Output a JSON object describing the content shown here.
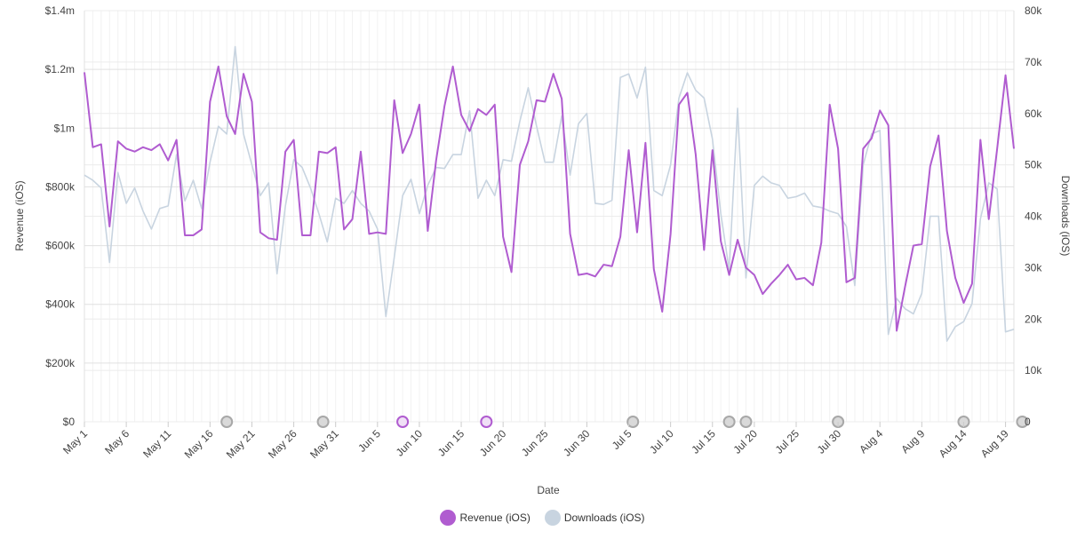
{
  "chart_data": {
    "type": "line",
    "title": "",
    "xlabel": "Date",
    "ylabel_left": "Revenue (iOS)",
    "ylabel_right": "Downloads (iOS)",
    "x_start": "May 1",
    "x_ticks": [
      "May 1",
      "May 6",
      "May 11",
      "May 16",
      "May 21",
      "May 26",
      "May 31",
      "Jun 5",
      "Jun 10",
      "Jun 15",
      "Jun 20",
      "Jun 25",
      "Jun 30",
      "Jul 5",
      "Jul 10",
      "Jul 15",
      "Jul 20",
      "Jul 25",
      "Jul 30",
      "Aug 4",
      "Aug 9",
      "Aug 14",
      "Aug 19"
    ],
    "y_left_ticks": [
      "$0",
      "$200k",
      "$400k",
      "$600k",
      "$800k",
      "$1m",
      "$1.2m",
      "$1.4m"
    ],
    "y_left_range": [
      0,
      1400000
    ],
    "y_right_ticks": [
      "0",
      "10k",
      "20k",
      "30k",
      "40k",
      "50k",
      "60k",
      "70k",
      "80k"
    ],
    "y_right_range": [
      0,
      80000
    ],
    "grid": true,
    "legend_position": "bottom",
    "series": [
      {
        "name": "Revenue (iOS)",
        "axis": "left",
        "color": "#b05cd0",
        "values": [
          1190000,
          935000,
          945000,
          665000,
          955000,
          930000,
          920000,
          935000,
          925000,
          945000,
          890000,
          960000,
          635000,
          635000,
          655000,
          1090000,
          1210000,
          1040000,
          980000,
          1185000,
          1090000,
          645000,
          625000,
          620000,
          920000,
          960000,
          635000,
          635000,
          920000,
          915000,
          935000,
          655000,
          690000,
          920000,
          640000,
          645000,
          640000,
          1095000,
          915000,
          980000,
          1080000,
          650000,
          890000,
          1075000,
          1210000,
          1045000,
          990000,
          1065000,
          1045000,
          1080000,
          630000,
          510000,
          875000,
          955000,
          1095000,
          1090000,
          1185000,
          1100000,
          640000,
          500000,
          505000,
          495000,
          535000,
          530000,
          630000,
          925000,
          645000,
          950000,
          520000,
          375000,
          640000,
          1080000,
          1120000,
          910000,
          585000,
          925000,
          615000,
          500000,
          620000,
          525000,
          500000,
          435000,
          470000,
          500000,
          535000,
          485000,
          490000,
          465000,
          610000,
          1080000,
          930000,
          475000,
          490000,
          930000,
          965000,
          1060000,
          1010000,
          310000,
          460000,
          600000,
          605000,
          870000,
          975000,
          650000,
          490000,
          405000,
          470000,
          960000,
          690000,
          930000,
          1180000,
          930000
        ]
      },
      {
        "name": "Downloads (iOS)",
        "axis": "right",
        "color": "#c8d4e0",
        "values": [
          48000,
          47000,
          45500,
          31000,
          48500,
          42500,
          45500,
          41000,
          37500,
          41500,
          42000,
          52000,
          43000,
          47000,
          41500,
          50500,
          57500,
          56000,
          73000,
          56000,
          50000,
          44000,
          46500,
          28800,
          42000,
          51000,
          49500,
          45500,
          40500,
          35000,
          43500,
          42500,
          45000,
          42500,
          41000,
          37500,
          20500,
          32000,
          44000,
          47200,
          40500,
          46000,
          49500,
          49300,
          52000,
          52000,
          60500,
          43500,
          47000,
          44000,
          51000,
          50700,
          58500,
          65000,
          57500,
          50500,
          50500,
          59500,
          48000,
          58000,
          60000,
          42500,
          42300,
          43100,
          67000,
          67700,
          63000,
          69000,
          45000,
          44000,
          50000,
          63000,
          67900,
          64500,
          63000,
          55000,
          40500,
          29500,
          61000,
          28000,
          46000,
          47800,
          46500,
          46000,
          43500,
          43800,
          44500,
          42000,
          41700,
          41000,
          40500,
          38000,
          26500,
          50000,
          56000,
          56700,
          17000,
          24000,
          22000,
          21000,
          25000,
          40000,
          40000,
          15700,
          18500,
          19500,
          23000,
          39500,
          46500,
          45300,
          17500,
          18000
        ]
      }
    ],
    "event_markers": [
      {
        "x": 17,
        "kind": "grey"
      },
      {
        "x": 28.5,
        "kind": "grey"
      },
      {
        "x": 38,
        "kind": "purple"
      },
      {
        "x": 48,
        "kind": "purple"
      },
      {
        "x": 65.5,
        "kind": "grey"
      },
      {
        "x": 77,
        "kind": "grey"
      },
      {
        "x": 79,
        "kind": "grey"
      },
      {
        "x": 90,
        "kind": "grey"
      },
      {
        "x": 105,
        "kind": "grey"
      },
      {
        "x": 112,
        "kind": "grey"
      }
    ],
    "marker_colors": {
      "grey_fill": "#d9d9d9",
      "grey_stroke": "#a8a8a8",
      "purple_fill": "#f0e0f6",
      "purple_stroke": "#b05cd0"
    }
  }
}
